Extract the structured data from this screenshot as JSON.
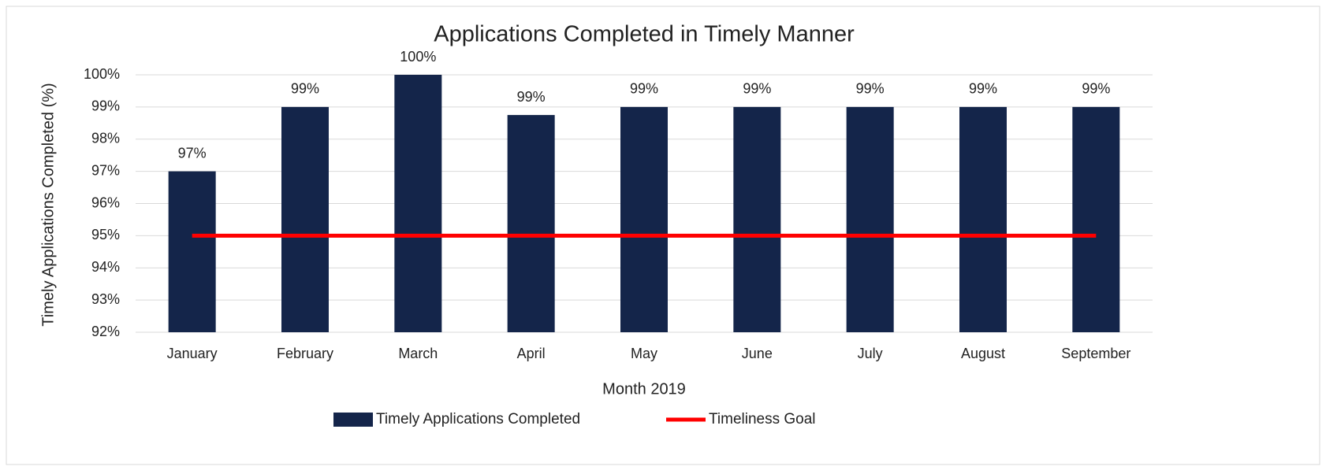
{
  "chart_data": {
    "type": "bar",
    "title": "Applications Completed in Timely Manner",
    "x_label": "Month 2019",
    "y_label": "Timely Applications Completed (%)",
    "categories": [
      "January",
      "February",
      "March",
      "April",
      "May",
      "June",
      "July",
      "August",
      "September"
    ],
    "series": [
      {
        "name": "Timely Applications Completed",
        "type": "bar",
        "color": "#14254a",
        "values": [
          97,
          99,
          100,
          98.75,
          99,
          99,
          99,
          99,
          99
        ],
        "value_labels": [
          "97%",
          "99%",
          "100%",
          "99%",
          "99%",
          "99%",
          "99%",
          "99%",
          "99%"
        ]
      },
      {
        "name": "Timeliness Goal",
        "type": "line",
        "color": "#ff0000",
        "values": [
          95,
          95,
          95,
          95,
          95,
          95,
          95,
          95,
          95
        ]
      }
    ],
    "ylim": [
      92,
      100
    ],
    "yticks": [
      {
        "value": 92,
        "label": "92%"
      },
      {
        "value": 93,
        "label": "93%"
      },
      {
        "value": 94,
        "label": "94%"
      },
      {
        "value": 95,
        "label": "95%"
      },
      {
        "value": 96,
        "label": "96%"
      },
      {
        "value": 97,
        "label": "97%"
      },
      {
        "value": 98,
        "label": "98%"
      },
      {
        "value": 99,
        "label": "99%"
      },
      {
        "value": 100,
        "label": "100%"
      }
    ],
    "grid": true,
    "legend": "bottom"
  }
}
